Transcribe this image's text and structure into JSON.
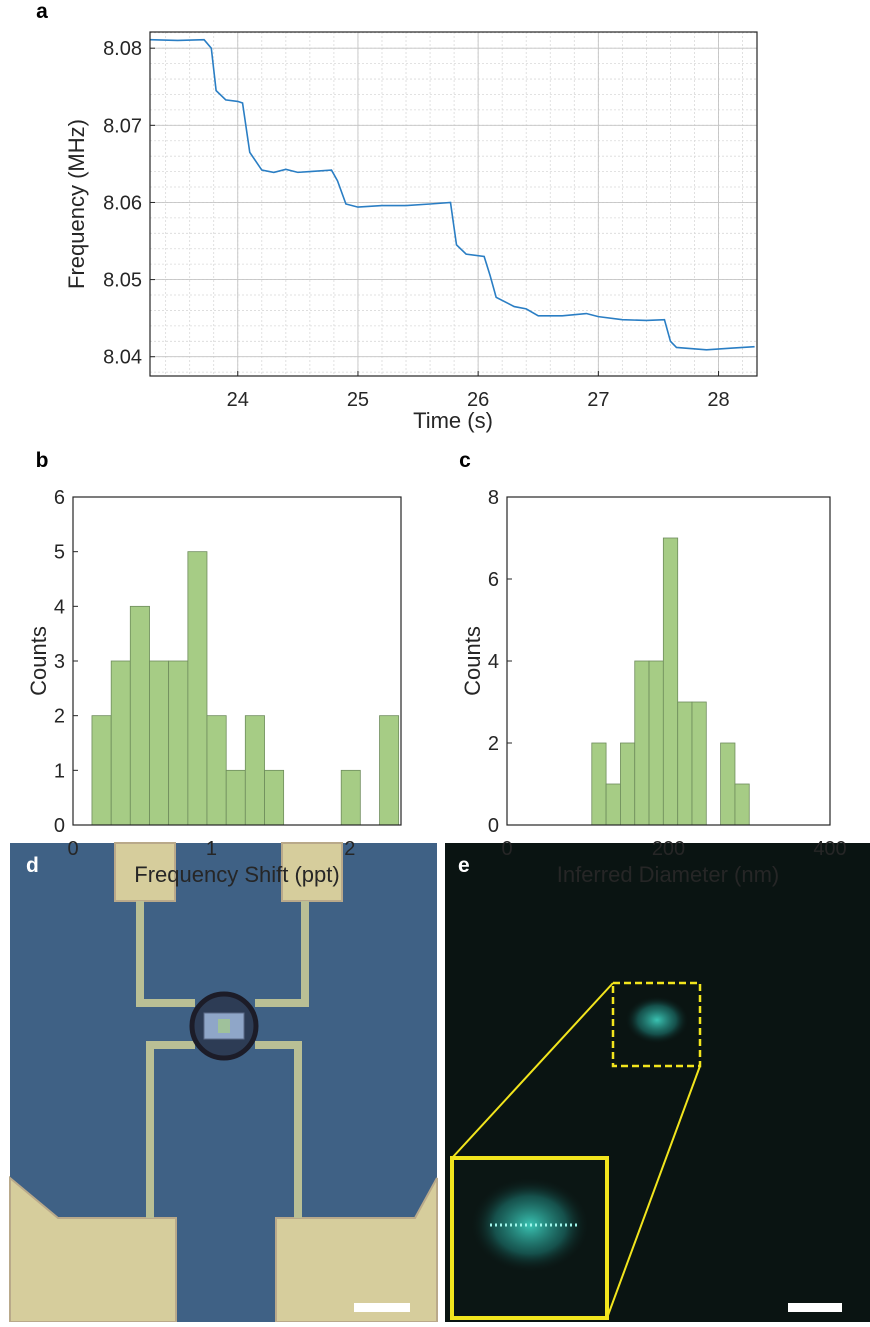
{
  "chart_data": [
    {
      "type": "line",
      "label": "a",
      "x_label": "Time (s)",
      "y_label": "Frequency (MHz)",
      "color": "#2a7ec4",
      "x": [
        23.27,
        23.5,
        23.72,
        23.78,
        23.82,
        23.9,
        24.0,
        24.04,
        24.1,
        24.2,
        24.3,
        24.4,
        24.5,
        24.6,
        24.78,
        24.83,
        24.9,
        25.0,
        25.2,
        25.4,
        25.6,
        25.77,
        25.82,
        25.9,
        26.05,
        26.1,
        26.15,
        26.3,
        26.4,
        26.5,
        26.7,
        26.9,
        27.0,
        27.2,
        27.4,
        27.55,
        27.6,
        27.65,
        27.9,
        28.1,
        28.3
      ],
      "values": [
        8.0811,
        8.081,
        8.0811,
        8.08,
        8.0745,
        8.0733,
        8.0731,
        8.0729,
        8.0665,
        8.0642,
        8.0639,
        8.0643,
        8.0639,
        8.064,
        8.0642,
        8.0628,
        8.0598,
        8.0594,
        8.0596,
        8.0596,
        8.0598,
        8.06,
        8.0545,
        8.0533,
        8.053,
        8.0505,
        8.0477,
        8.0465,
        8.0462,
        8.0453,
        8.0453,
        8.0456,
        8.0452,
        8.0448,
        8.0447,
        8.0448,
        8.042,
        8.0412,
        8.0409,
        8.0411,
        8.0413
      ],
      "xlim": [
        23.27,
        28.32
      ],
      "ylim": [
        8.0375,
        8.0821
      ],
      "xticks": [
        24,
        25,
        26,
        27,
        28
      ],
      "yticks": [
        8.04,
        8.05,
        8.06,
        8.07,
        8.08
      ],
      "grid": true,
      "minor_grid": true
    },
    {
      "type": "histogram",
      "label": "b",
      "x_label": "Frequency Shift (ppt)",
      "y_label": "Counts",
      "color": "#a6cc85",
      "edge_color": "#6e8c5c",
      "bins": [
        0.137,
        0.276,
        0.414,
        0.553,
        0.691,
        0.83,
        0.968,
        1.107,
        1.245,
        1.384,
        1.522,
        1.661,
        1.799,
        1.938,
        2.076,
        2.215,
        2.353
      ],
      "values": [
        2,
        3,
        4,
        3,
        3,
        5,
        2,
        1,
        2,
        1,
        0,
        0,
        0,
        1,
        0,
        2
      ],
      "xlim": [
        0,
        2.37
      ],
      "ylim": [
        0,
        6
      ],
      "xticks": [
        0,
        1,
        2
      ],
      "yticks": [
        0,
        1,
        2,
        3,
        4,
        5,
        6
      ],
      "grid": false
    },
    {
      "type": "histogram",
      "label": "c",
      "x_label": "Inferred Diameter (nm)",
      "y_label": "Counts",
      "color": "#a6cc85",
      "edge_color": "#6e8c5c",
      "bins": [
        105,
        122.7,
        140.5,
        158.2,
        175.9,
        193.6,
        211.4,
        229.1,
        246.8,
        264.5,
        282.3,
        300
      ],
      "values": [
        2,
        1,
        2,
        4,
        4,
        7,
        3,
        3,
        0,
        2,
        1
      ],
      "xlim": [
        0,
        400
      ],
      "ylim": [
        0,
        8
      ],
      "xticks": [
        0,
        200,
        400
      ],
      "yticks": [
        0,
        2,
        4,
        6,
        8
      ],
      "grid": false
    }
  ],
  "images": [
    {
      "label": "d"
    },
    {
      "label": "e"
    }
  ]
}
